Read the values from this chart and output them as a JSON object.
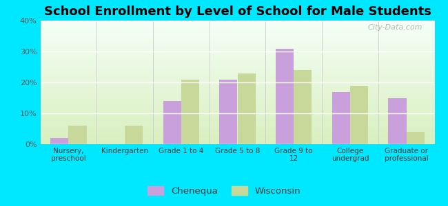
{
  "title": "School Enrollment by Level of School for Male Students",
  "categories": [
    "Nursery,\npreschool",
    "Kindergarten",
    "Grade 1 to 4",
    "Grade 5 to 8",
    "Grade 9 to\n12",
    "College\nundergrad",
    "Graduate or\nprofessional"
  ],
  "chenequa": [
    2,
    0,
    14,
    21,
    31,
    17,
    15
  ],
  "wisconsin": [
    6,
    6,
    21,
    23,
    24,
    19,
    4
  ],
  "chenequa_color": "#c9a0dc",
  "wisconsin_color": "#c8d89a",
  "background_outer": "#00e8ff",
  "background_inner_top": "#f5fff8",
  "background_inner_bottom": "#d8efc0",
  "ylim": [
    0,
    40
  ],
  "yticks": [
    0,
    10,
    20,
    30,
    40
  ],
  "yticklabels": [
    "0%",
    "10%",
    "20%",
    "30%",
    "40%"
  ],
  "title_fontsize": 13,
  "tick_fontsize": 8,
  "legend_labels": [
    "Chenequa",
    "Wisconsin"
  ],
  "bar_width": 0.32,
  "watermark": "City-Data.com"
}
